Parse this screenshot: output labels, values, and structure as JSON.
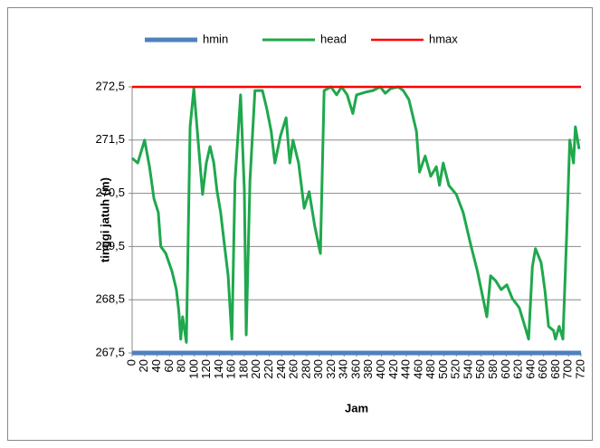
{
  "chart_data": {
    "type": "line",
    "x_label": "Jam",
    "y_label": "tinggi jatuh (m)",
    "xlim": [
      0,
      720
    ],
    "xticks": [
      0,
      20,
      40,
      60,
      80,
      100,
      120,
      140,
      160,
      180,
      200,
      220,
      240,
      260,
      280,
      300,
      320,
      340,
      360,
      380,
      400,
      420,
      440,
      460,
      480,
      500,
      520,
      540,
      560,
      580,
      600,
      620,
      640,
      660,
      680,
      700,
      720
    ],
    "ylim": [
      267.5,
      272.5
    ],
    "yticks": [
      {
        "value": 267.5,
        "label": "267,5"
      },
      {
        "value": 268.5,
        "label": "268,5"
      },
      {
        "value": 269.5,
        "label": "269,5"
      },
      {
        "value": 270.5,
        "label": "270,5"
      },
      {
        "value": 271.5,
        "label": "271,5"
      },
      {
        "value": 272.5,
        "label": "272,5"
      }
    ],
    "grid": true,
    "legend": "top",
    "series": [
      {
        "name": "hmin",
        "color": "#4f81bd",
        "x": [
          0,
          720
        ],
        "values": [
          267.5,
          267.5
        ]
      },
      {
        "name": "head",
        "color": "#1fa84d",
        "x": [
          0,
          9,
          20,
          28,
          35,
          42,
          46,
          54,
          64,
          71,
          75,
          78,
          81,
          87,
          93,
          99,
          104,
          113,
          119,
          125,
          131,
          136,
          142,
          148,
          154,
          160,
          165,
          174,
          180,
          183,
          189,
          197,
          209,
          216,
          223,
          229,
          238,
          247,
          253,
          258,
          267,
          276,
          284,
          293,
          302,
          308,
          319,
          328,
          336,
          345,
          354,
          360,
          374,
          386,
          398,
          406,
          415,
          427,
          435,
          444,
          456,
          461,
          470,
          479,
          488,
          493,
          499,
          508,
          520,
          531,
          543,
          554,
          563,
          569,
          575,
          583,
          592,
          601,
          610,
          621,
          630,
          636,
          642,
          647,
          656,
          662,
          668,
          676,
          679,
          685,
          691,
          697,
          702,
          708,
          711,
          717
        ],
        "values": [
          271.16,
          271.07,
          271.5,
          270.99,
          270.4,
          270.14,
          269.5,
          269.37,
          269.03,
          268.69,
          268.27,
          267.76,
          268.18,
          267.7,
          271.75,
          272.47,
          271.75,
          270.48,
          271.07,
          271.38,
          271.07,
          270.56,
          270.14,
          269.54,
          268.95,
          267.76,
          270.73,
          272.35,
          270.56,
          267.84,
          270.73,
          272.43,
          272.43,
          272.09,
          271.67,
          271.07,
          271.58,
          271.92,
          271.07,
          271.5,
          271.07,
          270.22,
          270.53,
          269.88,
          269.37,
          272.43,
          272.5,
          272.35,
          272.5,
          272.35,
          272.0,
          272.35,
          272.4,
          272.43,
          272.5,
          272.38,
          272.47,
          272.5,
          272.43,
          272.26,
          271.67,
          270.9,
          271.2,
          270.82,
          271.0,
          270.65,
          271.07,
          270.65,
          270.48,
          270.14,
          269.54,
          269.03,
          268.52,
          268.18,
          268.95,
          268.86,
          268.69,
          268.78,
          268.52,
          268.35,
          268.0,
          267.76,
          269.12,
          269.46,
          269.2,
          268.69,
          268.0,
          267.92,
          267.76,
          268.0,
          267.76,
          269.71,
          271.5,
          271.07,
          271.75,
          271.33
        ]
      },
      {
        "name": "hmax",
        "color": "#ff0000",
        "x": [
          0,
          720
        ],
        "values": [
          272.5,
          272.5
        ]
      }
    ]
  }
}
